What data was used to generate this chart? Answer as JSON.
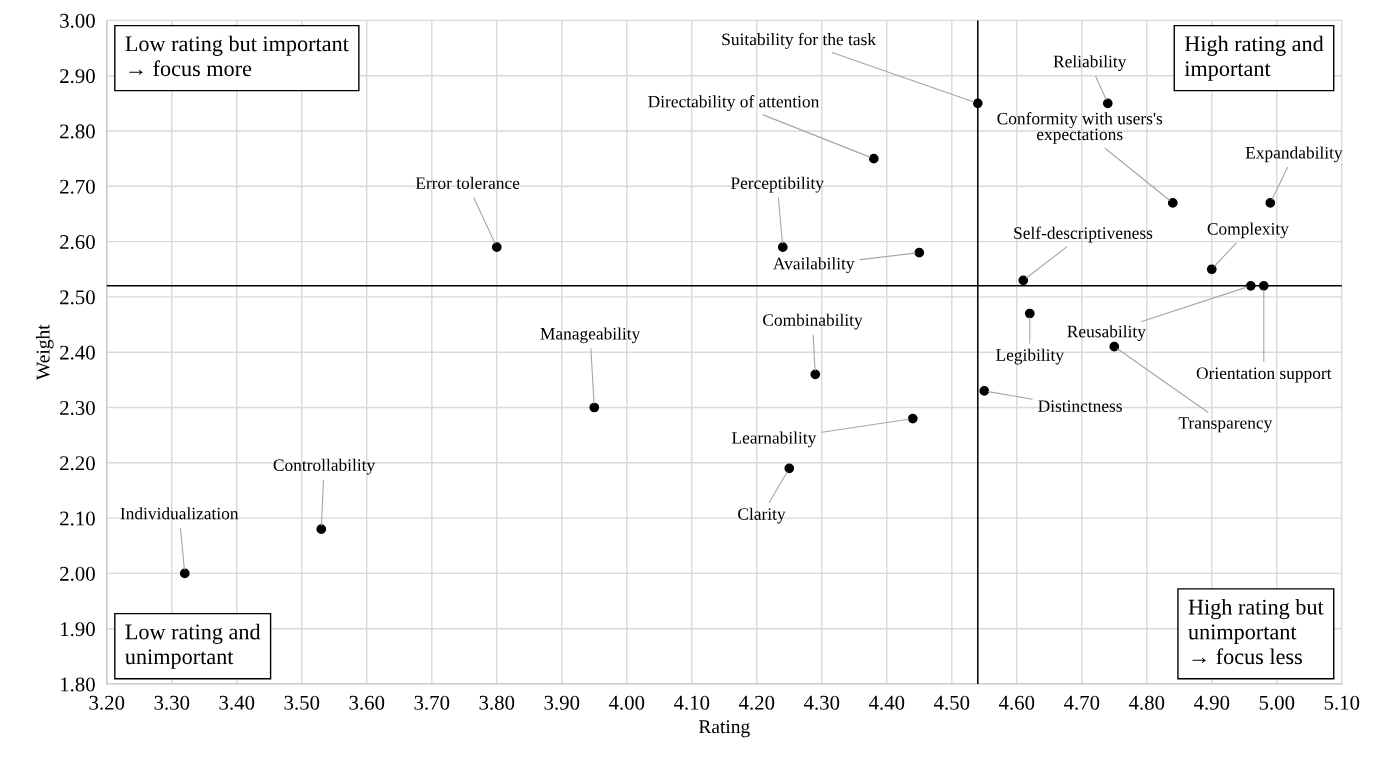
{
  "chart_data": {
    "type": "scatter",
    "xlabel": "Rating",
    "ylabel": "Weight",
    "x": [
      3.32,
      3.53,
      3.8,
      3.95,
      4.38,
      4.24,
      4.45,
      4.29,
      4.44,
      4.25,
      4.54,
      4.74,
      4.84,
      4.99,
      4.61,
      4.9,
      4.96,
      4.98,
      4.62,
      4.75,
      4.55
    ],
    "series": [
      {
        "color": "#000000",
        "values": [
          2.0,
          2.08,
          2.59,
          2.3,
          2.75,
          2.59,
          2.58,
          2.36,
          2.28,
          2.19,
          2.85,
          2.85,
          2.67,
          2.67,
          2.53,
          2.55,
          2.52,
          2.52,
          2.47,
          2.41,
          2.33
        ]
      }
    ],
    "marker": "circle",
    "grid": true,
    "xlim": [
      3.2,
      5.1
    ],
    "xticks": [
      {
        "value": 3.2,
        "label": "3.20"
      },
      {
        "value": 3.3,
        "label": "3.30"
      },
      {
        "value": 3.4,
        "label": "3.40"
      },
      {
        "value": 3.5,
        "label": "3.50"
      },
      {
        "value": 3.6,
        "label": "3.60"
      },
      {
        "value": 3.7,
        "label": "3.70"
      },
      {
        "value": 3.8,
        "label": "3.80"
      },
      {
        "value": 3.9,
        "label": "3.90"
      },
      {
        "value": 4.0,
        "label": "4.00"
      },
      {
        "value": 4.1,
        "label": "4.10"
      },
      {
        "value": 4.2,
        "label": "4.20"
      },
      {
        "value": 4.3,
        "label": "4.30"
      },
      {
        "value": 4.4,
        "label": "4.40"
      },
      {
        "value": 4.5,
        "label": "4.50"
      },
      {
        "value": 4.6,
        "label": "4.60"
      },
      {
        "value": 4.7,
        "label": "4.70"
      },
      {
        "value": 4.8,
        "label": "4.80"
      },
      {
        "value": 4.9,
        "label": "4.90"
      },
      {
        "value": 5.0,
        "label": "5.00"
      },
      {
        "value": 5.1,
        "label": "5.10"
      }
    ],
    "ylim": [
      1.8,
      3.0
    ],
    "yticks": [
      {
        "value": 1.8,
        "label": "1.80"
      },
      {
        "value": 1.9,
        "label": "1.90"
      },
      {
        "value": 2.0,
        "label": "2.00"
      },
      {
        "value": 2.1,
        "label": "2.10"
      },
      {
        "value": 2.2,
        "label": "2.20"
      },
      {
        "value": 2.3,
        "label": "2.30"
      },
      {
        "value": 2.4,
        "label": "2.40"
      },
      {
        "value": 2.5,
        "label": "2.50"
      },
      {
        "value": 2.6,
        "label": "2.60"
      },
      {
        "value": 2.7,
        "label": "2.70"
      },
      {
        "value": 2.8,
        "label": "2.80"
      },
      {
        "value": 2.9,
        "label": "2.90"
      },
      {
        "value": 3.0,
        "label": "3.00"
      }
    ],
    "ref_lines": [
      {
        "axis": "x",
        "value": 4.54,
        "color": "#000000"
      },
      {
        "axis": "y",
        "value": 2.52,
        "color": "#000000"
      }
    ],
    "annotations": [
      "Low rating but important\n→ focus more",
      "High rating and\nimportant",
      "Low rating and\nunimportant",
      "High rating but\nunimportant\n→ focus less",
      {
        "text": "Individualization",
        "x": 3.32,
        "y": 2.0
      },
      {
        "text": "Controllability",
        "x": 3.53,
        "y": 2.08
      },
      {
        "text": "Error tolerance",
        "x": 3.8,
        "y": 2.59
      },
      {
        "text": "Manageability",
        "x": 3.95,
        "y": 2.3
      },
      {
        "text": "Directability of attention",
        "x": 4.38,
        "y": 2.75
      },
      {
        "text": "Perceptibility",
        "x": 4.24,
        "y": 2.59
      },
      {
        "text": "Availability",
        "x": 4.45,
        "y": 2.58
      },
      {
        "text": "Combinability",
        "x": 4.29,
        "y": 2.36
      },
      {
        "text": "Learnability",
        "x": 4.44,
        "y": 2.28
      },
      {
        "text": "Clarity",
        "x": 4.25,
        "y": 2.19
      },
      {
        "text": "Suitability for the task",
        "x": 4.54,
        "y": 2.85
      },
      {
        "text": "Reliability",
        "x": 4.74,
        "y": 2.85
      },
      {
        "text": "Conformity with users's\nexpectations",
        "x": 4.84,
        "y": 2.67
      },
      {
        "text": "Expandability",
        "x": 4.99,
        "y": 2.67
      },
      {
        "text": "Self-descriptiveness",
        "x": 4.61,
        "y": 2.53
      },
      {
        "text": "Complexity",
        "x": 4.9,
        "y": 2.55
      },
      {
        "text": "Reusability",
        "x": 4.96,
        "y": 2.52
      },
      {
        "text": "Orientation support",
        "x": 4.98,
        "y": 2.52
      },
      {
        "text": "Legibility",
        "x": 4.62,
        "y": 2.47
      },
      {
        "text": "Transparency",
        "x": 4.75,
        "y": 2.41
      },
      {
        "text": "Distinctness",
        "x": 4.55,
        "y": 2.33
      }
    ]
  }
}
